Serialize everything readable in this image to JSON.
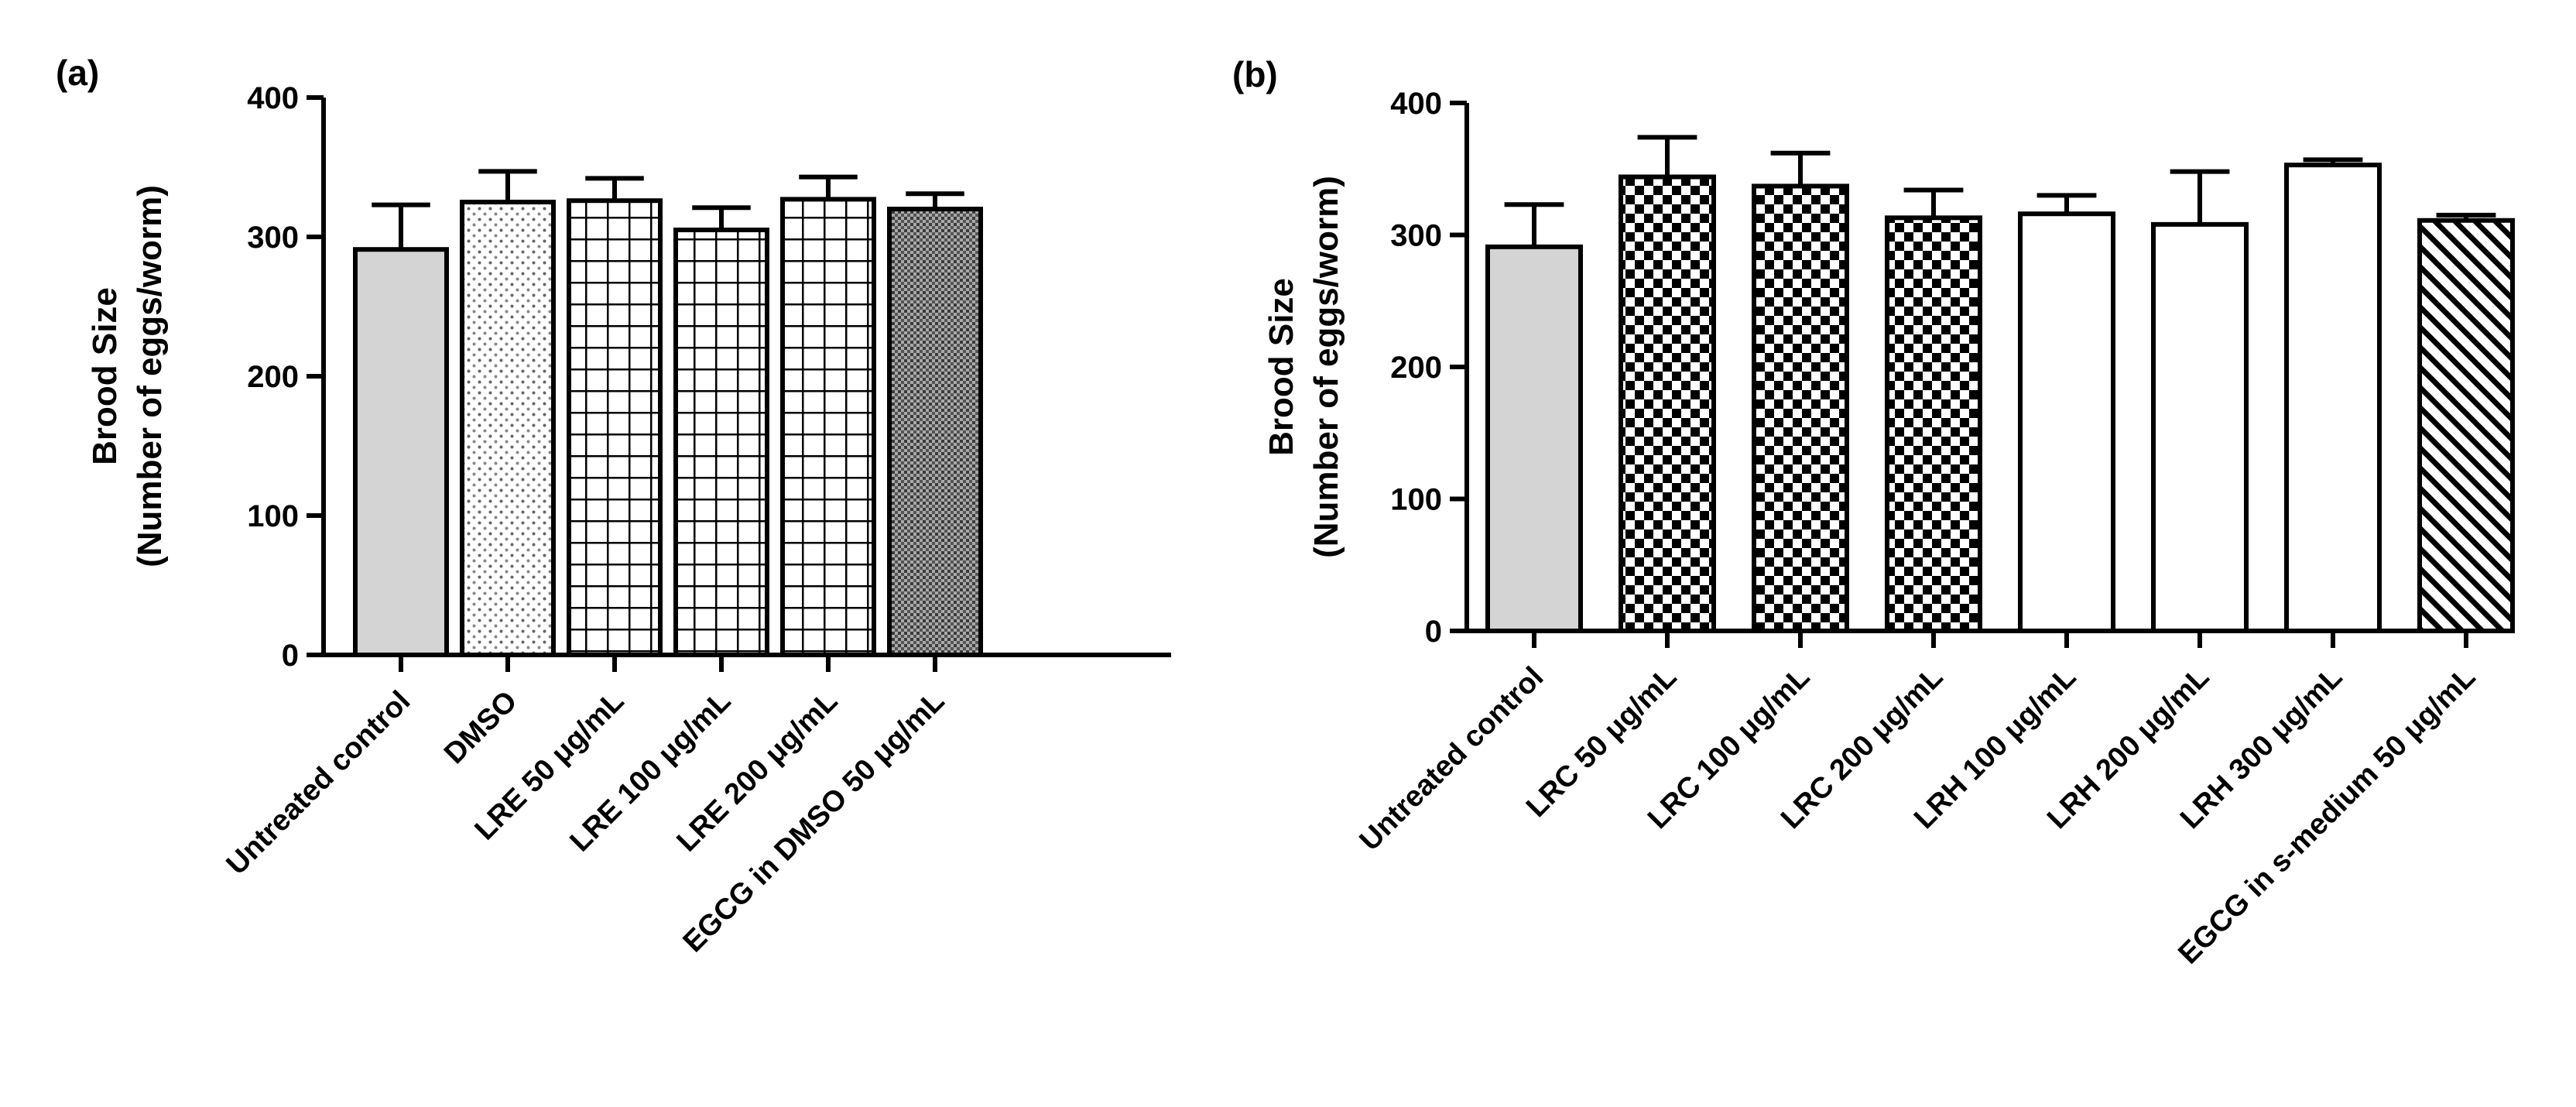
{
  "figure": {
    "panel_labels": [
      "(a)",
      "(b)"
    ]
  },
  "chart_data": [
    {
      "type": "bar",
      "panel": "(a)",
      "title": "",
      "xlabel": "",
      "ylabel_lines": [
        "Brood Size",
        "(Number of eggs/worm)"
      ],
      "ylim": [
        0,
        400
      ],
      "yticks": [
        0,
        100,
        200,
        300,
        400
      ],
      "grid": false,
      "categories": [
        "Untreated control",
        "DMSO",
        "LRE 50 μg/mL",
        "LRE 100 μg/mL",
        "LRE 200 μg/mL",
        "EGCG in DMSO 50 μg/mL"
      ],
      "values": [
        291,
        325,
        326,
        305,
        327,
        320
      ],
      "errors": [
        32,
        22,
        16,
        16,
        16,
        11
      ],
      "patterns": [
        "solid-gray",
        "dots",
        "grid",
        "grid",
        "grid",
        "dense-crosshatch"
      ]
    },
    {
      "type": "bar",
      "panel": "(b)",
      "title": "",
      "xlabel": "",
      "ylabel_lines": [
        "Brood Size",
        "(Number of eggs/worm)"
      ],
      "ylim": [
        0,
        400
      ],
      "yticks": [
        0,
        100,
        200,
        300,
        400
      ],
      "grid": false,
      "categories": [
        "Untreated control",
        "LRC 50 μg/mL",
        "LRC 100 μg/mL",
        "LRC 200 μg/mL",
        "LRH 100 μg/mL",
        "LRH 200 μg/mL",
        "LRH 300 μg/mL",
        "EGCG in s-medium 50 μg/mL"
      ],
      "values": [
        291,
        344,
        337,
        313,
        316,
        308,
        353,
        311
      ],
      "errors": [
        32,
        30,
        25,
        21,
        14,
        40,
        4,
        4
      ],
      "patterns": [
        "solid-gray",
        "checker",
        "checker",
        "checker",
        "white",
        "white",
        "white",
        "diagonal"
      ]
    }
  ]
}
